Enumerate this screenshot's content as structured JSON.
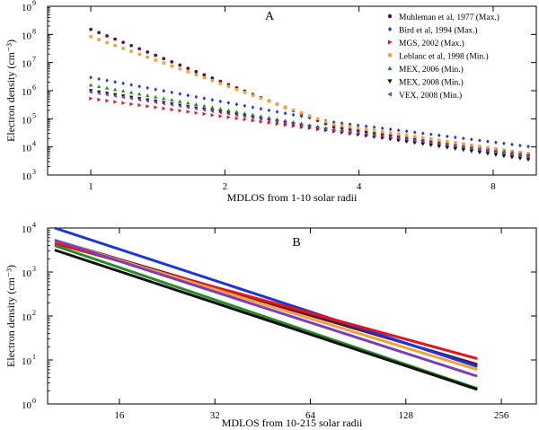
{
  "chart_data": [
    {
      "panel": "A",
      "type": "scatter",
      "xscale": "log2",
      "yscale": "log10",
      "xlabel": "MDLOS from 1-10 solar radii",
      "ylabel": "Electron density (cm⁻³)",
      "xlim": [
        0.8,
        10
      ],
      "ylim_exp": [
        3,
        9
      ],
      "xticks": [
        1,
        2,
        4,
        8
      ],
      "xtick_labels": [
        "1",
        "2",
        "4",
        "8"
      ],
      "yticks_exp": [
        3,
        4,
        5,
        6,
        7,
        8,
        9
      ],
      "ytick_base": "10",
      "legend_position": "top-right",
      "series": [
        {
          "name": "Muhleman et al, 1977 (Max.)",
          "color": "#5b1236",
          "marker": "circle",
          "x": [
            1,
            3.5,
            10
          ],
          "y_log": [
            8.18,
            4.72,
            3.6
          ]
        },
        {
          "name": "Bird et al, 1994 (Max.)",
          "color": "#1f34d6",
          "marker": "diamond",
          "x": [
            1,
            3.5,
            10
          ],
          "y_log": [
            6.47,
            4.88,
            3.98
          ]
        },
        {
          "name": "MGS, 2002 (Max.)",
          "color": "#e0141c",
          "marker": "triangle-right",
          "x": [
            1,
            3.5,
            10
          ],
          "y_log": [
            5.72,
            4.55,
            3.65
          ]
        },
        {
          "name": "Leblanc et al, 1998 (Min.)",
          "color": "#f2a23a",
          "marker": "square",
          "x": [
            1,
            3.5,
            10
          ],
          "y_log": [
            7.92,
            4.8,
            3.72
          ]
        },
        {
          "name": "MEX, 2006 (Min.)",
          "color": "#2a8a2a",
          "marker": "triangle-up",
          "x": [
            1,
            3.5,
            10
          ],
          "y_log": [
            6.2,
            4.62,
            3.6
          ]
        },
        {
          "name": "MEX, 2008 (Min.)",
          "color": "#111111",
          "marker": "triangle-down",
          "x": [
            1,
            3.5,
            10
          ],
          "y_log": [
            6.0,
            4.58,
            3.5
          ]
        },
        {
          "name": "VEX, 2008 (Min.)",
          "color": "#7a3fb8",
          "marker": "triangle-left",
          "x": [
            1,
            3.5,
            10
          ],
          "y_log": [
            5.95,
            4.6,
            3.68
          ]
        }
      ]
    },
    {
      "panel": "B",
      "type": "line",
      "xscale": "log2",
      "yscale": "log10",
      "xlabel": "MDLOS from 10-215 solar radii",
      "ylabel": "Electron density (cm⁻³)",
      "xlim": [
        9.5,
        330
      ],
      "ylim_exp": [
        0,
        4
      ],
      "xticks": [
        16,
        32,
        64,
        128,
        256
      ],
      "xtick_labels": [
        "16",
        "32",
        "64",
        "128",
        "256"
      ],
      "yticks_exp": [
        0,
        1,
        2,
        3,
        4
      ],
      "ytick_base": "10",
      "series": [
        {
          "name": "Muhleman et al, 1977 (Max.)",
          "color": "#5b1236",
          "x": [
            10,
            215
          ],
          "y_log": [
            3.72,
            0.9
          ]
        },
        {
          "name": "Bird et al, 1994 (Max.)",
          "color": "#1f34d6",
          "x": [
            10,
            215
          ],
          "y_log": [
            4.0,
            0.85
          ]
        },
        {
          "name": "MGS, 2002 (Max.)",
          "color": "#e0141c",
          "x": [
            10,
            215
          ],
          "y_log": [
            3.65,
            1.03
          ]
        },
        {
          "name": "Leblanc et al, 1998 (Min.)",
          "color": "#f2a23a",
          "x": [
            10,
            215
          ],
          "y_log": [
            3.72,
            0.78
          ]
        },
        {
          "name": "MEX, 2006 (Min.)",
          "color": "#2a8a2a",
          "x": [
            10,
            215
          ],
          "y_log": [
            3.6,
            0.35
          ]
        },
        {
          "name": "MEX, 2008 (Min.)",
          "color": "#111111",
          "x": [
            10,
            215
          ],
          "y_log": [
            3.5,
            0.33
          ]
        },
        {
          "name": "VEX, 2008 (Min.)",
          "color": "#7a3fb8",
          "x": [
            10,
            215
          ],
          "y_log": [
            3.72,
            0.63
          ]
        }
      ]
    }
  ]
}
